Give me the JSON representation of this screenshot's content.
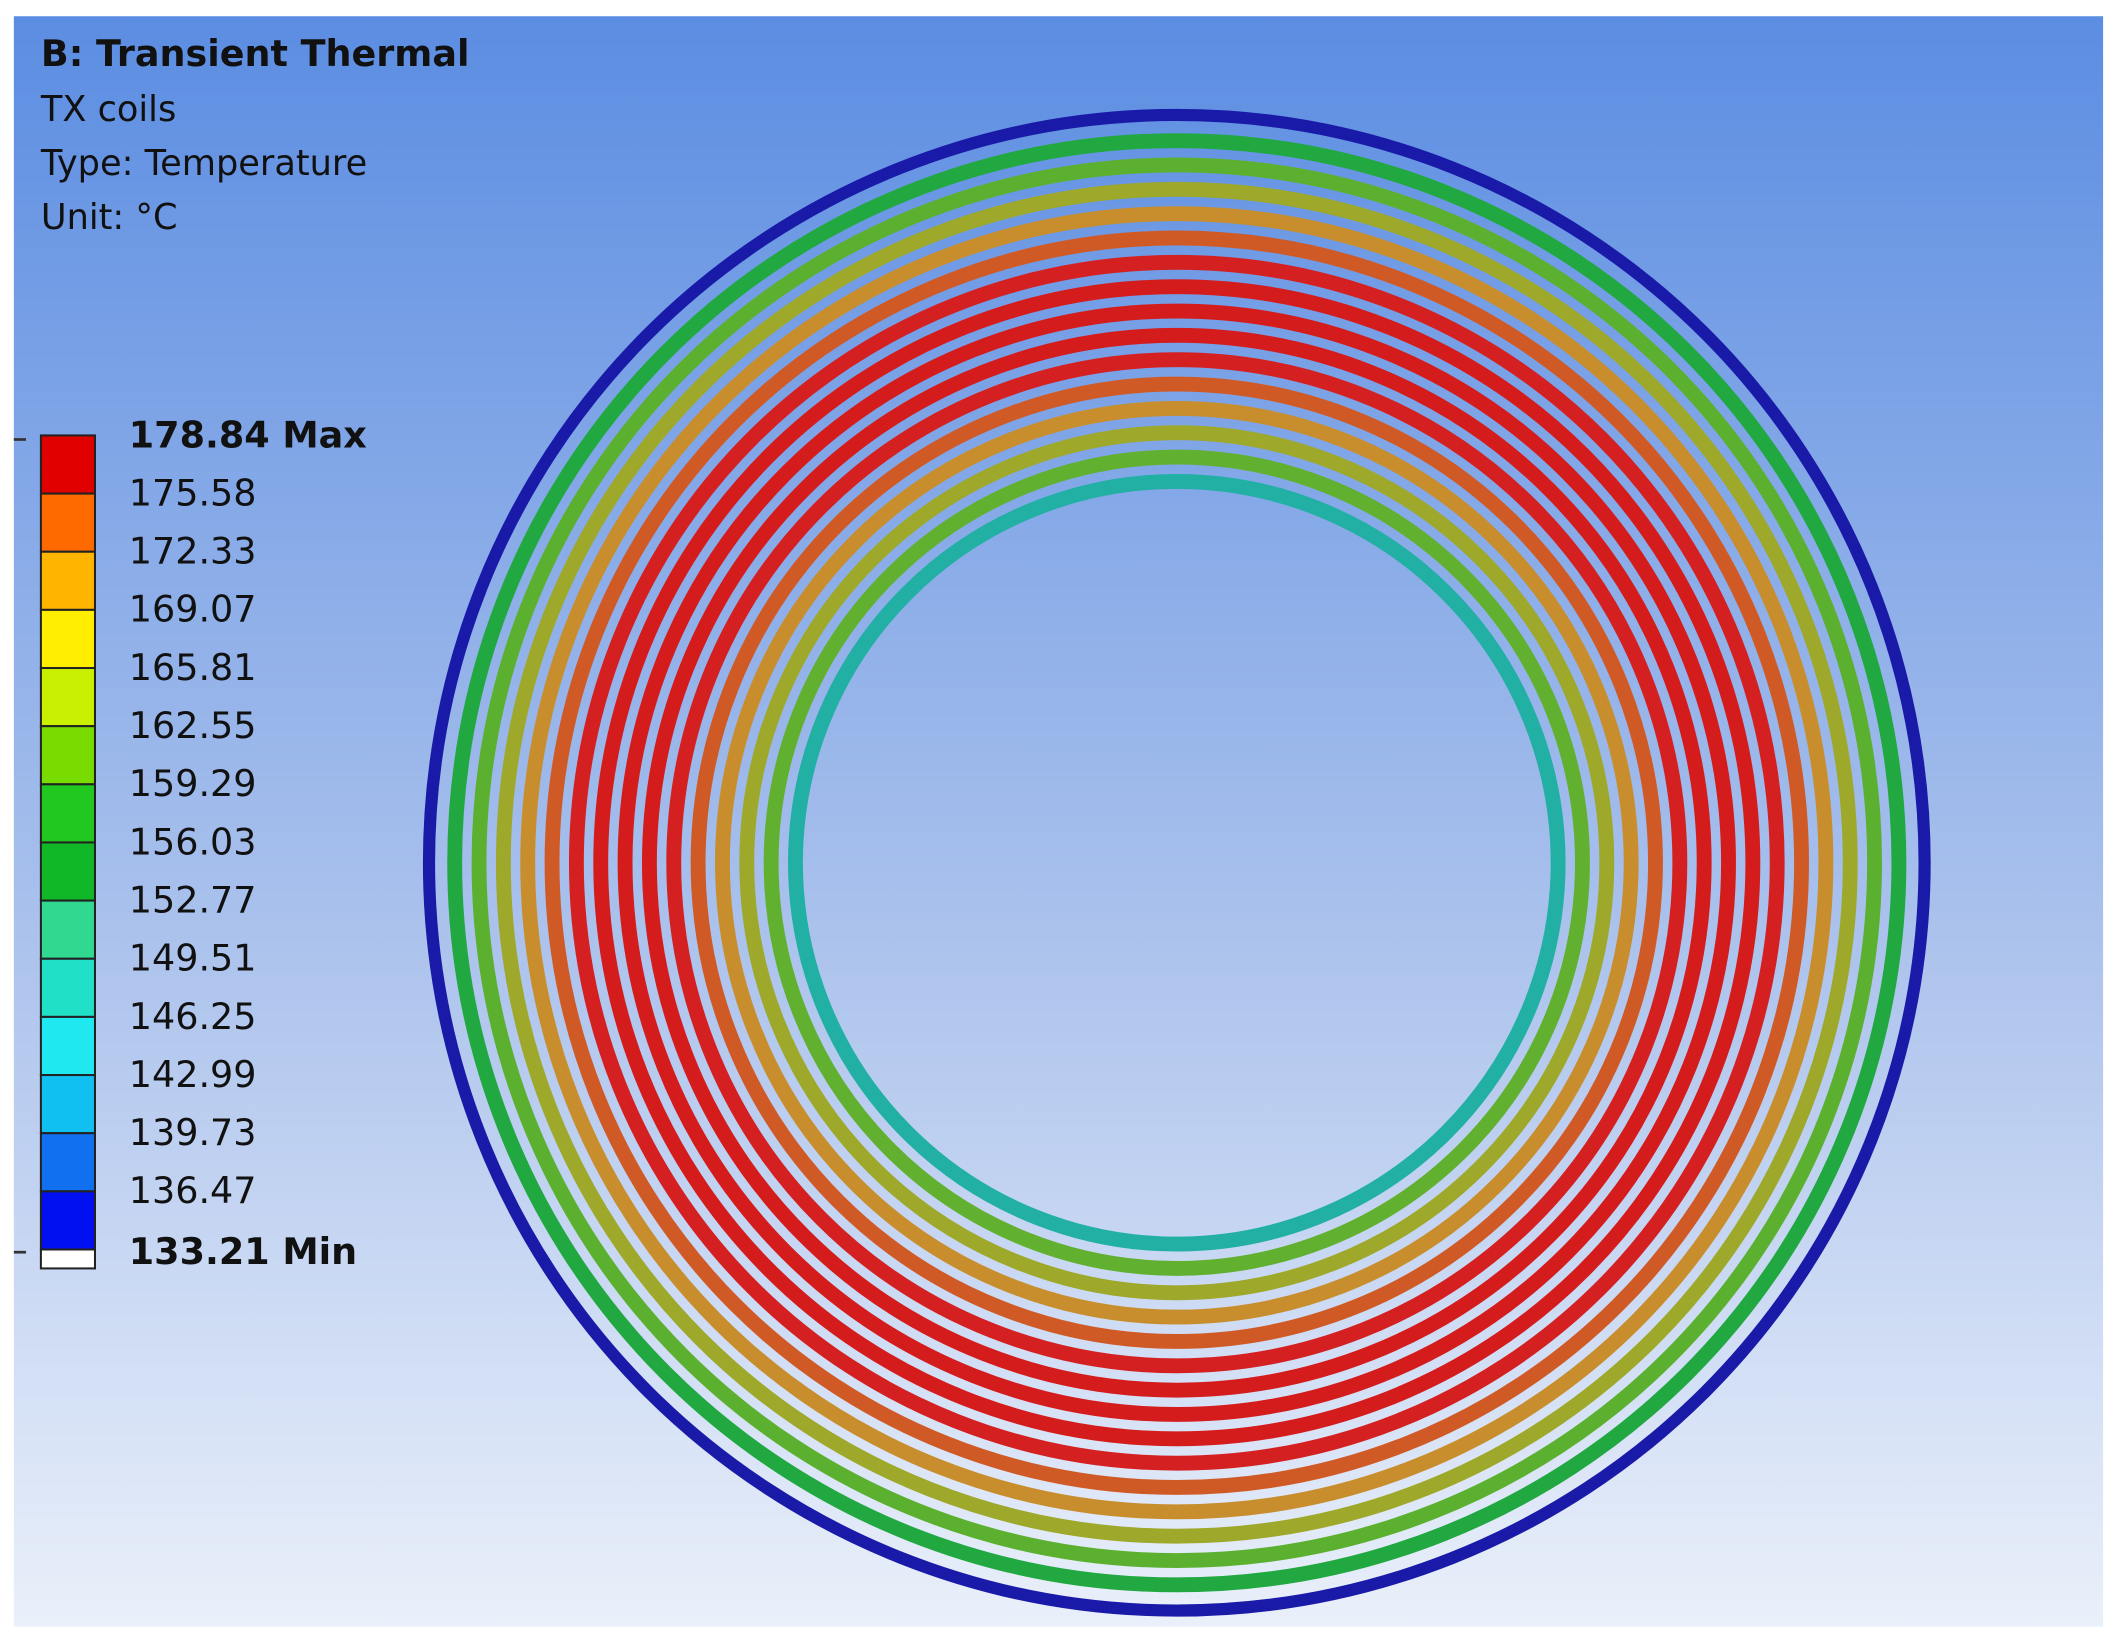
{
  "header": {
    "title": "B: Transient Thermal",
    "lines": [
      "TX coils",
      "Type: Temperature",
      "Unit: °C"
    ]
  },
  "legend": {
    "labels": [
      "178.84 Max",
      "175.58",
      "172.33",
      "169.07",
      "165.81",
      "162.55",
      "159.29",
      "156.03",
      "152.77",
      "149.51",
      "146.25",
      "142.99",
      "139.73",
      "136.47",
      "133.21 Min"
    ],
    "colors": [
      "#e00000",
      "#ff6a00",
      "#ffb400",
      "#ffee00",
      "#c8f000",
      "#78dc00",
      "#20c820",
      "#10b828",
      "#30d890",
      "#20e0c8",
      "#20e8f0",
      "#10c0f0",
      "#1070f0",
      "#0010f0"
    ]
  }
}
